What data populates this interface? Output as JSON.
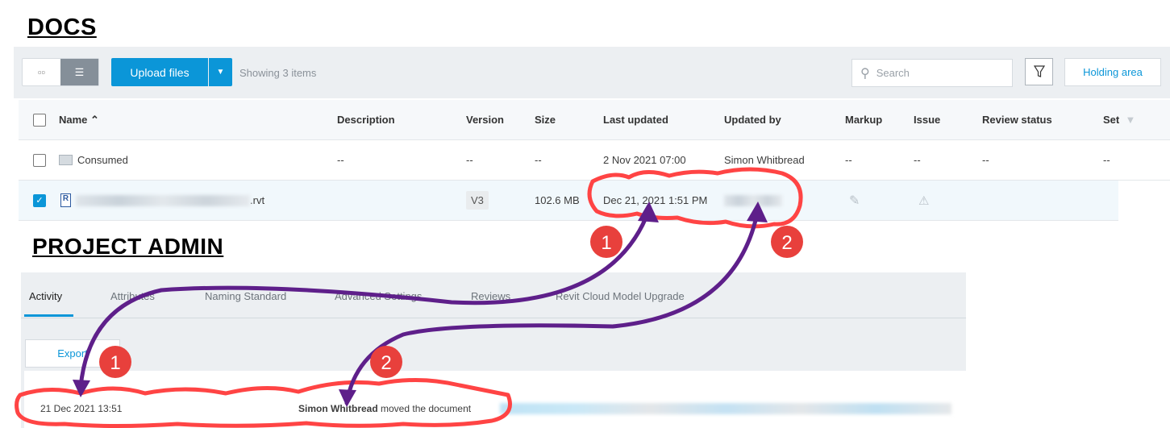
{
  "headings": {
    "docs": "DOCS",
    "admin": "PROJECT ADMIN"
  },
  "docs": {
    "toolbar": {
      "upload_label": "Upload files",
      "showing": "Showing 3 items",
      "search_placeholder": "Search",
      "holding_area": "Holding area"
    },
    "columns": [
      "Name",
      "Description",
      "Version",
      "Size",
      "Last updated",
      "Updated by",
      "Markup",
      "Issue",
      "Review status",
      "Set"
    ],
    "rows": [
      {
        "name": "Consumed",
        "type": "folder",
        "description": "--",
        "version": "--",
        "size": "--",
        "last_updated": "2 Nov 2021 07:00",
        "updated_by": "Simon Whitbread",
        "markup": "--",
        "issue": "--",
        "review_status": "--",
        "set": "--",
        "checked": false
      },
      {
        "name_suffix": ".rvt",
        "type": "rvt",
        "version": "V3",
        "size": "102.6 MB",
        "last_updated": "Dec 21, 2021 1:51 PM",
        "checked": true
      }
    ]
  },
  "admin": {
    "tabs": [
      "Activity",
      "Attributes",
      "Naming Standard",
      "Advanced Settings",
      "Reviews",
      "Revit Cloud Model Upgrade"
    ],
    "active_tab": "Activity",
    "export_label": "Export",
    "activity": {
      "timestamp": "21 Dec 2021 13:51",
      "user": "Simon Whitbread",
      "action": "moved the document"
    }
  },
  "annotations": {
    "markers": [
      "1",
      "2",
      "1",
      "2"
    ],
    "cloud_color": "#ff4444",
    "arrow_color": "#5e1f8a",
    "marker_color": "#e8403c"
  }
}
